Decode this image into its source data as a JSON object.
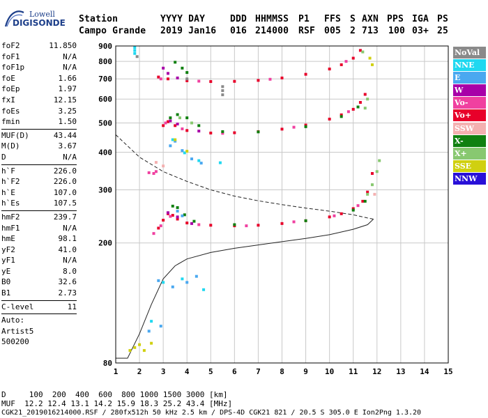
{
  "header": {
    "cols": [
      {
        "label": "Station",
        "value": "Campo Grande"
      },
      {
        "label": "YYYY DAY",
        "value": "2019 Jan16"
      },
      {
        "label": "DDD",
        "value": "016"
      },
      {
        "label": "HHMMSS",
        "value": "214000"
      },
      {
        "label": "P1",
        "value": "RSF"
      },
      {
        "label": "FFS",
        "value": "005"
      },
      {
        "label": "S",
        "value": "2"
      },
      {
        "label": "AXN",
        "value": "713"
      },
      {
        "label": "PPS",
        "value": "100"
      },
      {
        "label": "IGA",
        "value": "03+"
      },
      {
        "label": "PS",
        "value": "25"
      }
    ]
  },
  "logo": {
    "top": "Lowell",
    "bottom": "DIGISONDE",
    "color": "#1d3f8a"
  },
  "params": {
    "group1": [
      {
        "k": "foF2",
        "v": "11.850"
      },
      {
        "k": "foF1",
        "v": "N/A"
      },
      {
        "k": "foF1p",
        "v": "N/A"
      },
      {
        "k": "foE",
        "v": "1.66"
      },
      {
        "k": "foEp",
        "v": "1.97"
      },
      {
        "k": "fxI",
        "v": "12.15"
      },
      {
        "k": "foEs",
        "v": "3.25"
      },
      {
        "k": "fmin",
        "v": "1.50"
      }
    ],
    "group2": [
      {
        "k": "MUF(D)",
        "v": "43.44"
      },
      {
        "k": "M(D)",
        "v": "3.67"
      },
      {
        "k": "D",
        "v": "N/A"
      }
    ],
    "group3": [
      {
        "k": "h`F",
        "v": "226.0"
      },
      {
        "k": "h`F2",
        "v": "226.0"
      },
      {
        "k": "h`E",
        "v": "107.0"
      },
      {
        "k": "h`Es",
        "v": "107.5"
      }
    ],
    "group4": [
      {
        "k": "hmF2",
        "v": "239.7"
      },
      {
        "k": "hmF1",
        "v": "N/A"
      },
      {
        "k": "hmE",
        "v": "98.1"
      },
      {
        "k": "yF2",
        "v": "41.0"
      },
      {
        "k": "yF1",
        "v": "N/A"
      },
      {
        "k": "yE",
        "v": "8.0"
      },
      {
        "k": "B0",
        "v": "32.6"
      },
      {
        "k": "B1",
        "v": "2.73"
      }
    ],
    "group5": [
      {
        "k": "C-level",
        "v": "11"
      }
    ],
    "autoscale": [
      "Auto:",
      "Artist5",
      "500200"
    ]
  },
  "legend": [
    {
      "label": "NoVal",
      "color": "#8a8a8a"
    },
    {
      "label": "NNE",
      "color": "#20d8f0"
    },
    {
      "label": "E",
      "color": "#4aa8f0"
    },
    {
      "label": "W",
      "color": "#a800a8"
    },
    {
      "label": "Vo-",
      "color": "#f040a0"
    },
    {
      "label": "Vo+",
      "color": "#e8002a"
    },
    {
      "label": "SSW",
      "color": "#f4b0b0"
    },
    {
      "label": "X-",
      "color": "#108010"
    },
    {
      "label": "X+",
      "color": "#88c870"
    },
    {
      "label": "SSE",
      "color": "#d0d010"
    },
    {
      "label": "NNW",
      "color": "#2810d8"
    }
  ],
  "footer": {
    "d_line": "D     100  200  400  600  800 1000 1500 3000 [km]",
    "muf_line": "MUF  12.2 12.4 13.1 14.2 15.9 18.3 25.2 43.4 [MHz]",
    "file_line": "CGK21_2019016214000.RSF / 280fx512h 50 kHz 2.5 km / DPS-4D CGK21 821 / 20.5 S 305.0 E Ion2Png 1.3.20"
  },
  "chart_data": {
    "type": "scatter",
    "xlabel": "",
    "ylabel": "",
    "xlim": [
      1,
      15
    ],
    "ylim": [
      80,
      900
    ],
    "y_scale": "log",
    "xticks": [
      1,
      2,
      3,
      4,
      5,
      6,
      7,
      8,
      9,
      10,
      11,
      12,
      13,
      14,
      15
    ],
    "yticks": [
      80,
      200,
      300,
      400,
      500,
      600,
      700,
      800,
      900
    ],
    "grid": true,
    "series": [
      {
        "name": "Vo+",
        "color": "#e8002a",
        "points": [
          [
            2.8,
            224
          ],
          [
            3.0,
            238
          ],
          [
            3.2,
            250
          ],
          [
            3.4,
            247
          ],
          [
            3.6,
            240
          ],
          [
            4.0,
            233
          ],
          [
            5.0,
            229
          ],
          [
            6.0,
            228
          ],
          [
            7.0,
            229
          ],
          [
            8.0,
            232
          ],
          [
            9.0,
            237
          ],
          [
            10.0,
            244
          ],
          [
            10.5,
            250
          ],
          [
            11.0,
            260
          ],
          [
            11.4,
            275
          ],
          [
            11.6,
            295
          ],
          [
            11.8,
            340
          ],
          [
            3.0,
            490
          ],
          [
            3.2,
            505
          ],
          [
            3.5,
            490
          ],
          [
            4.0,
            472
          ],
          [
            5.0,
            463
          ],
          [
            6.0,
            464
          ],
          [
            7.0,
            468
          ],
          [
            8.0,
            477
          ],
          [
            9.0,
            492
          ],
          [
            10.0,
            515
          ],
          [
            10.5,
            532
          ],
          [
            11.0,
            555
          ],
          [
            11.3,
            585
          ],
          [
            11.5,
            622
          ],
          [
            2.8,
            710
          ],
          [
            3.2,
            700
          ],
          [
            4.0,
            690
          ],
          [
            5.0,
            686
          ],
          [
            6.0,
            687
          ],
          [
            7.0,
            692
          ],
          [
            8.0,
            705
          ],
          [
            9.0,
            725
          ],
          [
            10.0,
            755
          ],
          [
            10.5,
            780
          ],
          [
            11.0,
            820
          ],
          [
            11.3,
            870
          ]
        ]
      },
      {
        "name": "Vo-",
        "color": "#f040a0",
        "points": [
          [
            2.6,
            215
          ],
          [
            2.9,
            228
          ],
          [
            3.3,
            245
          ],
          [
            4.5,
            230
          ],
          [
            6.5,
            228
          ],
          [
            8.5,
            235
          ],
          [
            10.2,
            246
          ],
          [
            11.2,
            266
          ],
          [
            3.1,
            500
          ],
          [
            3.8,
            478
          ],
          [
            5.5,
            462
          ],
          [
            8.5,
            484
          ],
          [
            10.8,
            545
          ],
          [
            2.9,
            700
          ],
          [
            4.5,
            688
          ],
          [
            7.5,
            698
          ],
          [
            10.7,
            800
          ],
          [
            2.4,
            342
          ],
          [
            2.6,
            340
          ],
          [
            2.7,
            345
          ]
        ]
      },
      {
        "name": "W",
        "color": "#a800a8",
        "points": [
          [
            3.2,
            252
          ],
          [
            3.6,
            244
          ],
          [
            4.2,
            232
          ],
          [
            3.3,
            508
          ],
          [
            3.6,
            496
          ],
          [
            4.5,
            470
          ],
          [
            3.0,
            760
          ],
          [
            3.2,
            730
          ],
          [
            3.6,
            705
          ]
        ]
      },
      {
        "name": "X-",
        "color": "#108010",
        "points": [
          [
            3.4,
            265
          ],
          [
            3.6,
            262
          ],
          [
            3.9,
            248
          ],
          [
            4.3,
            236
          ],
          [
            6.0,
            230
          ],
          [
            9.0,
            237
          ],
          [
            11.0,
            257
          ],
          [
            11.5,
            275
          ],
          [
            3.3,
            520
          ],
          [
            3.6,
            533
          ],
          [
            4.0,
            520
          ],
          [
            4.5,
            490
          ],
          [
            5.5,
            468
          ],
          [
            7.0,
            467
          ],
          [
            9.0,
            486
          ],
          [
            10.5,
            525
          ],
          [
            11.2,
            565
          ],
          [
            3.5,
            795
          ],
          [
            3.8,
            760
          ],
          [
            4.0,
            735
          ]
        ]
      },
      {
        "name": "X+",
        "color": "#88c870",
        "points": [
          [
            11.6,
            290
          ],
          [
            11.8,
            312
          ],
          [
            12.0,
            345
          ],
          [
            12.1,
            375
          ],
          [
            11.5,
            560
          ],
          [
            11.6,
            600
          ],
          [
            11.4,
            860
          ],
          [
            3.7,
            520
          ],
          [
            4.2,
            500
          ]
        ]
      },
      {
        "name": "E",
        "color": "#4aa8f0",
        "points": [
          [
            3.3,
            420
          ],
          [
            3.5,
            435
          ],
          [
            3.8,
            405
          ],
          [
            4.2,
            380
          ],
          [
            4.6,
            368
          ],
          [
            3.6,
            255
          ],
          [
            3.8,
            246
          ],
          [
            2.8,
            150
          ],
          [
            3.4,
            143
          ],
          [
            4.0,
            148
          ],
          [
            4.4,
            155
          ],
          [
            2.4,
            102
          ],
          [
            2.9,
            106
          ]
        ]
      },
      {
        "name": "NNE",
        "color": "#20d8f0",
        "points": [
          [
            1.8,
            890
          ],
          [
            1.8,
            870
          ],
          [
            1.8,
            850
          ],
          [
            3.4,
            440
          ],
          [
            3.9,
            398
          ],
          [
            4.5,
            375
          ],
          [
            5.4,
            369
          ],
          [
            3.0,
            148
          ],
          [
            3.8,
            152
          ],
          [
            4.7,
            140
          ],
          [
            2.5,
            110
          ]
        ]
      },
      {
        "name": "SSE",
        "color": "#d0d010",
        "points": [
          [
            1.6,
            88
          ],
          [
            1.8,
            90
          ],
          [
            2.0,
            92
          ],
          [
            2.2,
            88
          ],
          [
            2.5,
            93
          ],
          [
            3.5,
            440
          ],
          [
            4.0,
            403
          ],
          [
            11.8,
            780
          ],
          [
            11.7,
            820
          ]
        ]
      },
      {
        "name": "SSW",
        "color": "#f4b0b0",
        "points": [
          [
            2.7,
            370
          ],
          [
            3.0,
            360
          ],
          [
            11.9,
            290
          ]
        ]
      },
      {
        "name": "NoVal",
        "color": "#8a8a8a",
        "points": [
          [
            5.5,
            620
          ],
          [
            5.5,
            640
          ],
          [
            5.5,
            660
          ],
          [
            1.9,
            830
          ],
          [
            4.0,
            700
          ]
        ]
      }
    ],
    "curves": [
      {
        "style": "dashed",
        "points": [
          [
            1,
            457
          ],
          [
            2,
            385
          ],
          [
            3,
            345
          ],
          [
            4,
            320
          ],
          [
            5,
            300
          ],
          [
            6,
            286
          ],
          [
            7,
            276
          ],
          [
            8,
            268
          ],
          [
            9,
            261
          ],
          [
            10,
            255
          ],
          [
            11,
            248
          ],
          [
            11.6,
            242
          ],
          [
            11.85,
            240
          ]
        ]
      },
      {
        "style": "solid",
        "points": [
          [
            1,
            83
          ],
          [
            1.5,
            83
          ],
          [
            2,
            100
          ],
          [
            2.5,
            125
          ],
          [
            3,
            152
          ],
          [
            3.5,
            168
          ],
          [
            4,
            177
          ],
          [
            5,
            186
          ],
          [
            6,
            192
          ],
          [
            7,
            197
          ],
          [
            8,
            202
          ],
          [
            9,
            207
          ],
          [
            10,
            213
          ],
          [
            11,
            222
          ],
          [
            11.6,
            230
          ],
          [
            11.85,
            240
          ]
        ]
      }
    ]
  }
}
